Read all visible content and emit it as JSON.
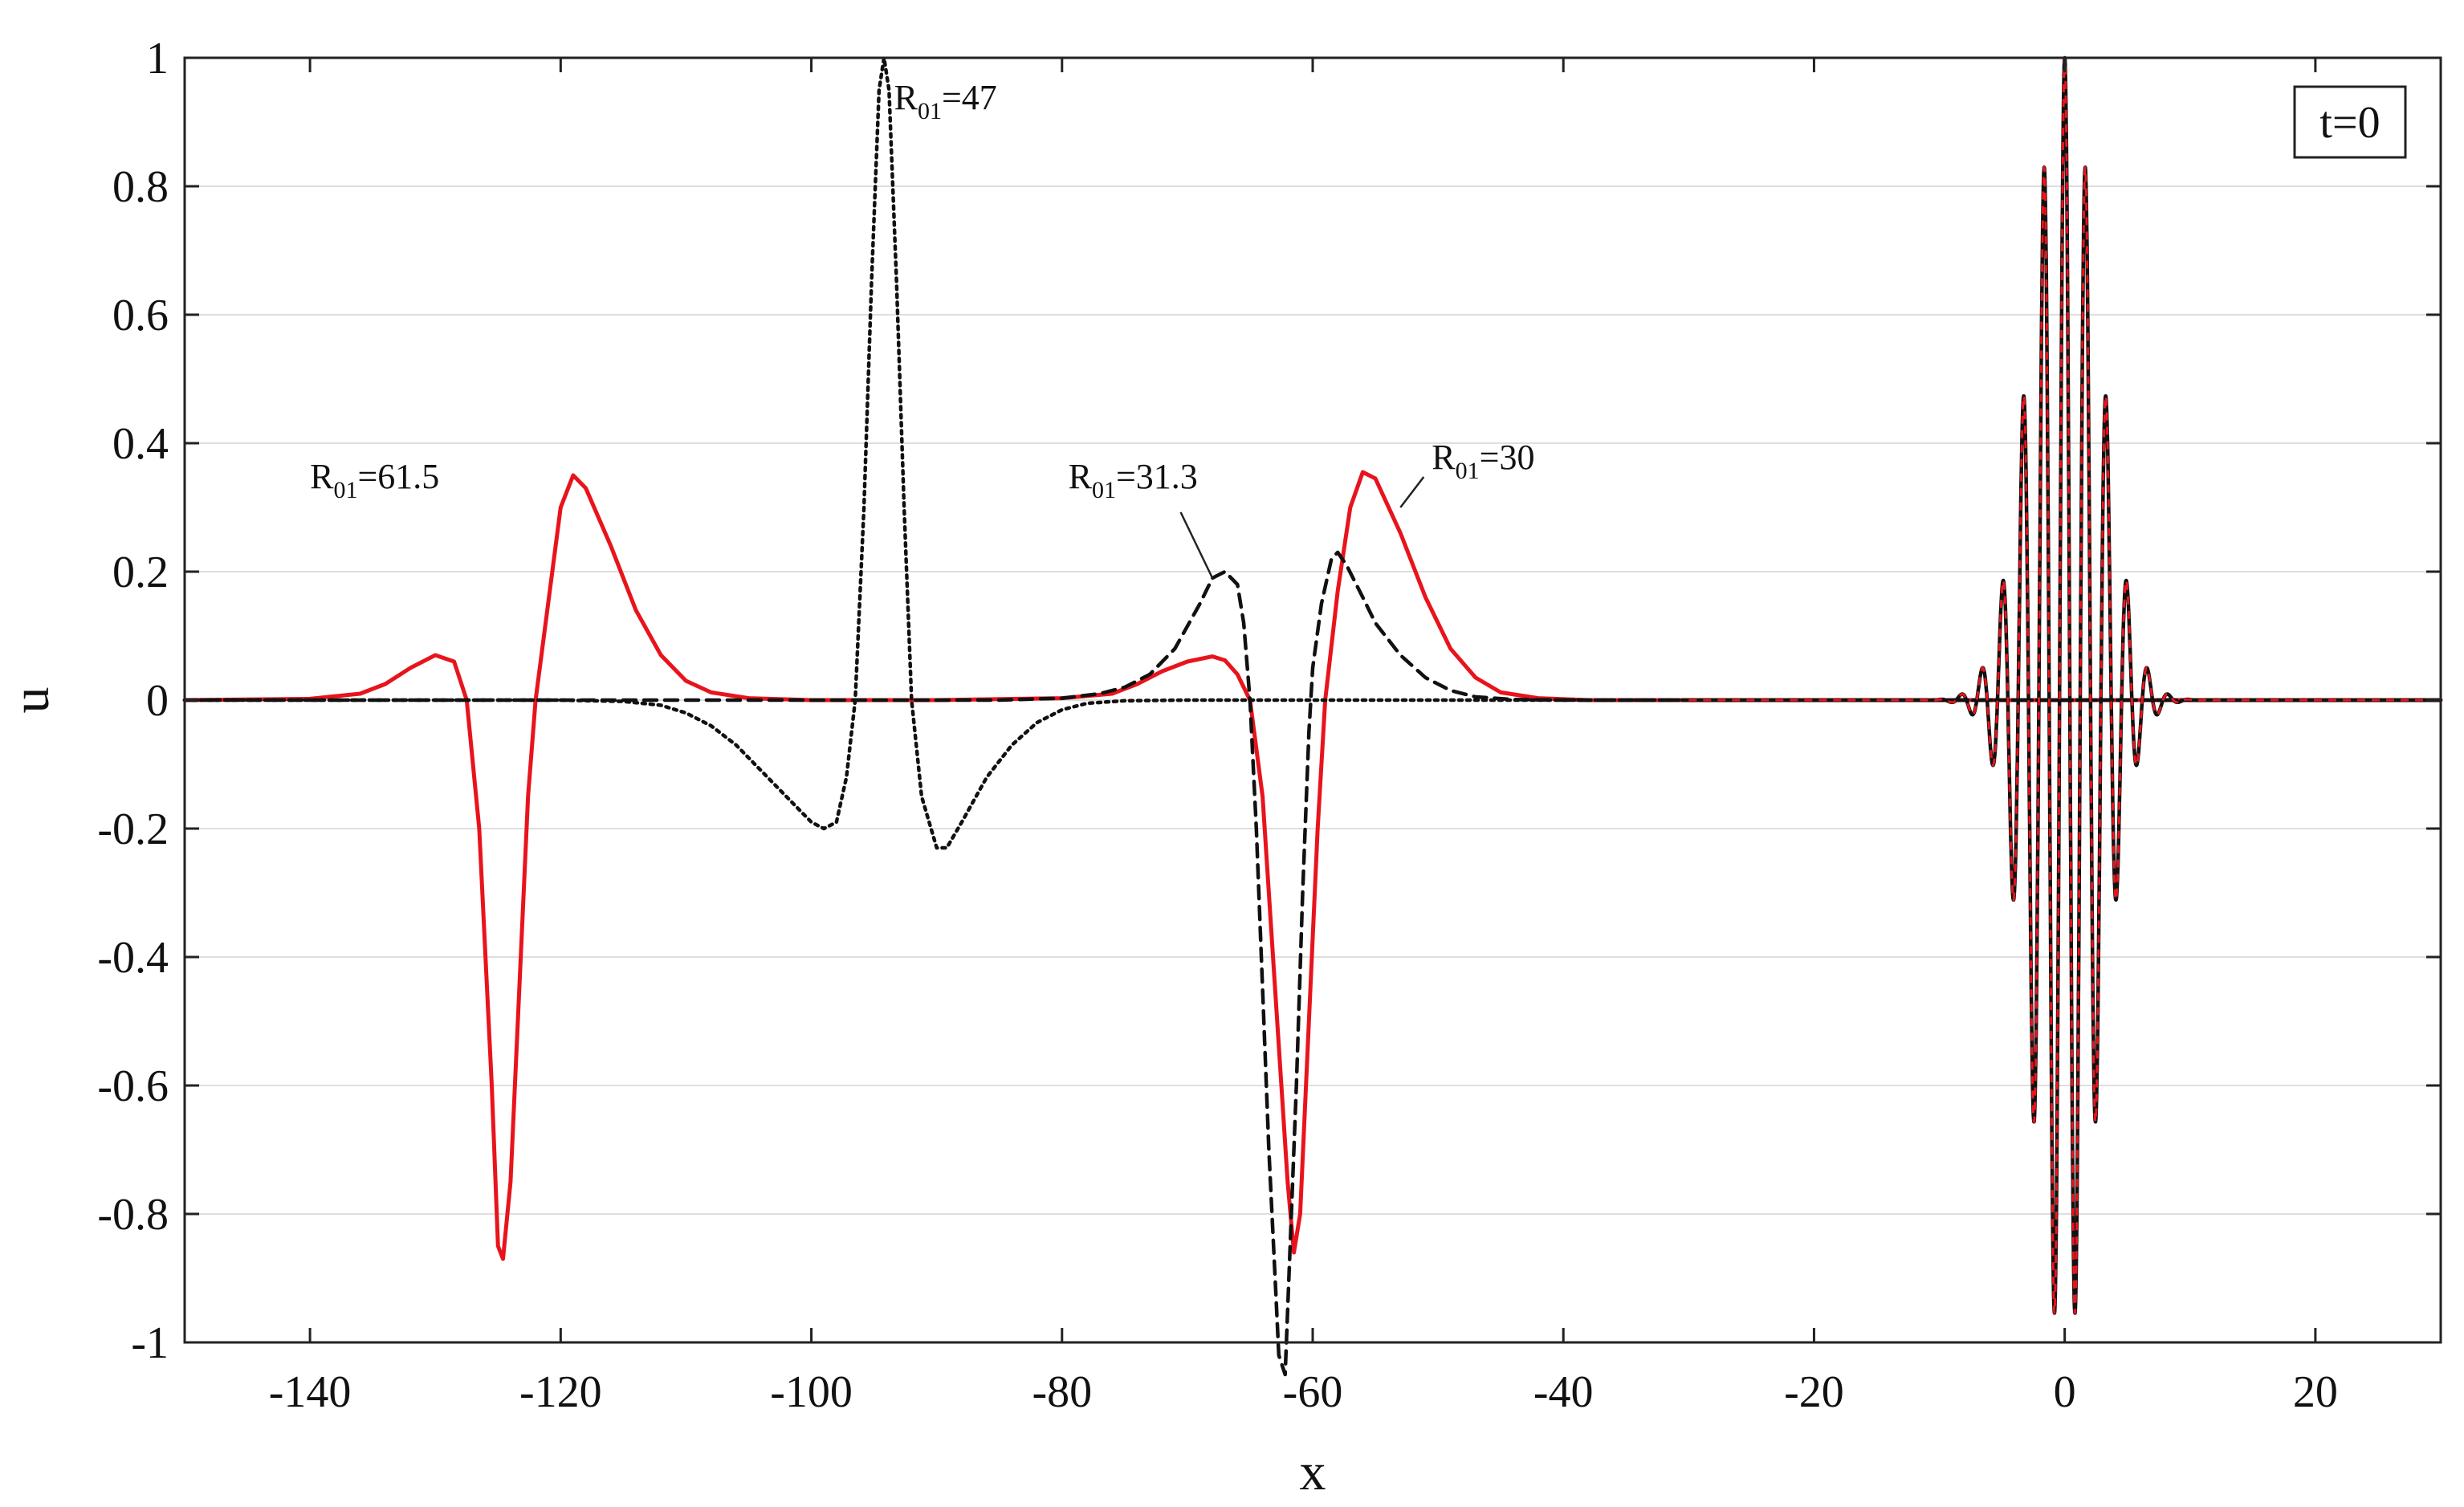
{
  "chart_data": {
    "type": "line",
    "title": "",
    "xlabel": "x",
    "ylabel": "u",
    "xlim": [
      -150,
      30
    ],
    "ylim": [
      -1,
      1
    ],
    "xticks": [
      "-140",
      "-120",
      "-100",
      "-80",
      "-60",
      "-40",
      "-20",
      "0",
      "20"
    ],
    "yticks": [
      "-1",
      "-0.8",
      "-0.6",
      "-0.4",
      "-0.2",
      "0",
      "0.2",
      "0.4",
      "0.6",
      "0.8",
      "1"
    ],
    "grid": "horizontal",
    "inset_label": "t=0",
    "series": [
      {
        "style": "solid",
        "color": "#e8141c",
        "points": [
          [
            -150,
            0
          ],
          [
            -140,
            0.002
          ],
          [
            -136,
            0.01
          ],
          [
            -134,
            0.025
          ],
          [
            -132,
            0.05
          ],
          [
            -130,
            0.07
          ],
          [
            -128.5,
            0.06
          ],
          [
            -127.5,
            0.0
          ],
          [
            -126.5,
            -0.2
          ],
          [
            -125.5,
            -0.6
          ],
          [
            -125,
            -0.85
          ],
          [
            -124.6,
            -0.87
          ],
          [
            -124,
            -0.75
          ],
          [
            -123.3,
            -0.45
          ],
          [
            -122.6,
            -0.15
          ],
          [
            -122,
            0.0
          ],
          [
            -121,
            0.15
          ],
          [
            -120,
            0.3
          ],
          [
            -119,
            0.35
          ],
          [
            -118,
            0.33
          ],
          [
            -116,
            0.24
          ],
          [
            -114,
            0.14
          ],
          [
            -112,
            0.07
          ],
          [
            -110,
            0.03
          ],
          [
            -108,
            0.012
          ],
          [
            -105,
            0.003
          ],
          [
            -100,
            0
          ],
          [
            -90,
            0
          ],
          [
            -80,
            0.003
          ],
          [
            -76,
            0.01
          ],
          [
            -74,
            0.025
          ],
          [
            -72,
            0.045
          ],
          [
            -70,
            0.06
          ],
          [
            -68,
            0.068
          ],
          [
            -67,
            0.062
          ],
          [
            -66,
            0.04
          ],
          [
            -65,
            0.0
          ],
          [
            -64,
            -0.15
          ],
          [
            -63,
            -0.45
          ],
          [
            -62,
            -0.75
          ],
          [
            -61.5,
            -0.86
          ],
          [
            -61,
            -0.8
          ],
          [
            -60.3,
            -0.5
          ],
          [
            -59.6,
            -0.2
          ],
          [
            -59,
            0.0
          ],
          [
            -58,
            0.17
          ],
          [
            -57,
            0.3
          ],
          [
            -56,
            0.355
          ],
          [
            -55,
            0.345
          ],
          [
            -53,
            0.26
          ],
          [
            -51,
            0.16
          ],
          [
            -49,
            0.08
          ],
          [
            -47,
            0.035
          ],
          [
            -45,
            0.012
          ],
          [
            -42,
            0.003
          ],
          [
            -38,
            0
          ],
          [
            30,
            0
          ]
        ]
      },
      {
        "style": "dashed",
        "color": "#111111",
        "points": [
          [
            -150,
            0
          ],
          [
            -85,
            0
          ],
          [
            -80,
            0.003
          ],
          [
            -77,
            0.01
          ],
          [
            -75,
            0.02
          ],
          [
            -73,
            0.04
          ],
          [
            -71,
            0.08
          ],
          [
            -69,
            0.15
          ],
          [
            -68,
            0.19
          ],
          [
            -67,
            0.2
          ],
          [
            -66,
            0.18
          ],
          [
            -65.5,
            0.12
          ],
          [
            -65,
            0.0
          ],
          [
            -64.5,
            -0.2
          ],
          [
            -64,
            -0.45
          ],
          [
            -63.5,
            -0.7
          ],
          [
            -63,
            -0.9
          ],
          [
            -62.7,
            -1.02
          ],
          [
            -62.2,
            -1.05
          ],
          [
            -61.8,
            -0.85
          ],
          [
            -61.3,
            -0.6
          ],
          [
            -60.8,
            -0.3
          ],
          [
            -60.3,
            -0.05
          ],
          [
            -60,
            0.05
          ],
          [
            -59.3,
            0.15
          ],
          [
            -58.5,
            0.22
          ],
          [
            -58,
            0.23
          ],
          [
            -57.3,
            0.21
          ],
          [
            -56,
            0.16
          ],
          [
            -55,
            0.12
          ],
          [
            -53,
            0.07
          ],
          [
            -51,
            0.035
          ],
          [
            -49,
            0.015
          ],
          [
            -47,
            0.005
          ],
          [
            -44,
            0.001
          ],
          [
            -40,
            0
          ],
          [
            30,
            0
          ]
        ]
      },
      {
        "style": "dotted",
        "color": "#111111",
        "points": [
          [
            -150,
            0
          ],
          [
            -120,
            0
          ],
          [
            -115,
            -0.002
          ],
          [
            -112,
            -0.008
          ],
          [
            -110,
            -0.02
          ],
          [
            -108,
            -0.04
          ],
          [
            -106,
            -0.07
          ],
          [
            -104,
            -0.11
          ],
          [
            -102,
            -0.15
          ],
          [
            -100,
            -0.19
          ],
          [
            -99,
            -0.2
          ],
          [
            -98,
            -0.19
          ],
          [
            -97.2,
            -0.12
          ],
          [
            -96.5,
            0.0
          ],
          [
            -95.8,
            0.3
          ],
          [
            -95.2,
            0.65
          ],
          [
            -94.6,
            0.95
          ],
          [
            -94.2,
            1.0
          ],
          [
            -93.8,
            0.95
          ],
          [
            -93.2,
            0.65
          ],
          [
            -92.6,
            0.3
          ],
          [
            -92,
            0.0
          ],
          [
            -91.2,
            -0.15
          ],
          [
            -90,
            -0.23
          ],
          [
            -89.2,
            -0.23
          ],
          [
            -88,
            -0.19
          ],
          [
            -86,
            -0.12
          ],
          [
            -84,
            -0.07
          ],
          [
            -82,
            -0.035
          ],
          [
            -80,
            -0.015
          ],
          [
            -78,
            -0.005
          ],
          [
            -75,
            -0.001
          ],
          [
            -70,
            0
          ],
          [
            30,
            0
          ]
        ]
      }
    ],
    "packet": {
      "colors": [
        "#111111",
        "#e8141c"
      ],
      "center": 0,
      "amplitude": 1.0,
      "carrier_period": 1.65,
      "envelope_width": 3.8
    },
    "annotations": [
      {
        "main": "R",
        "sub": "01",
        "value": "=61.5",
        "x": -140,
        "y": 0.33,
        "leader": false
      },
      {
        "main": "R",
        "sub": "01",
        "value": "=47",
        "x": -93.4,
        "y": 0.92,
        "leader": false
      },
      {
        "main": "R",
        "sub": "01",
        "value": "=31.3",
        "x": -79.5,
        "y": 0.33,
        "leader": true,
        "leader_to": [
          -68,
          0.19
        ]
      },
      {
        "main": "R",
        "sub": "01",
        "value": "=30",
        "x": -50.5,
        "y": 0.36,
        "leader": true,
        "leader_to": [
          -53,
          0.3
        ]
      }
    ]
  }
}
